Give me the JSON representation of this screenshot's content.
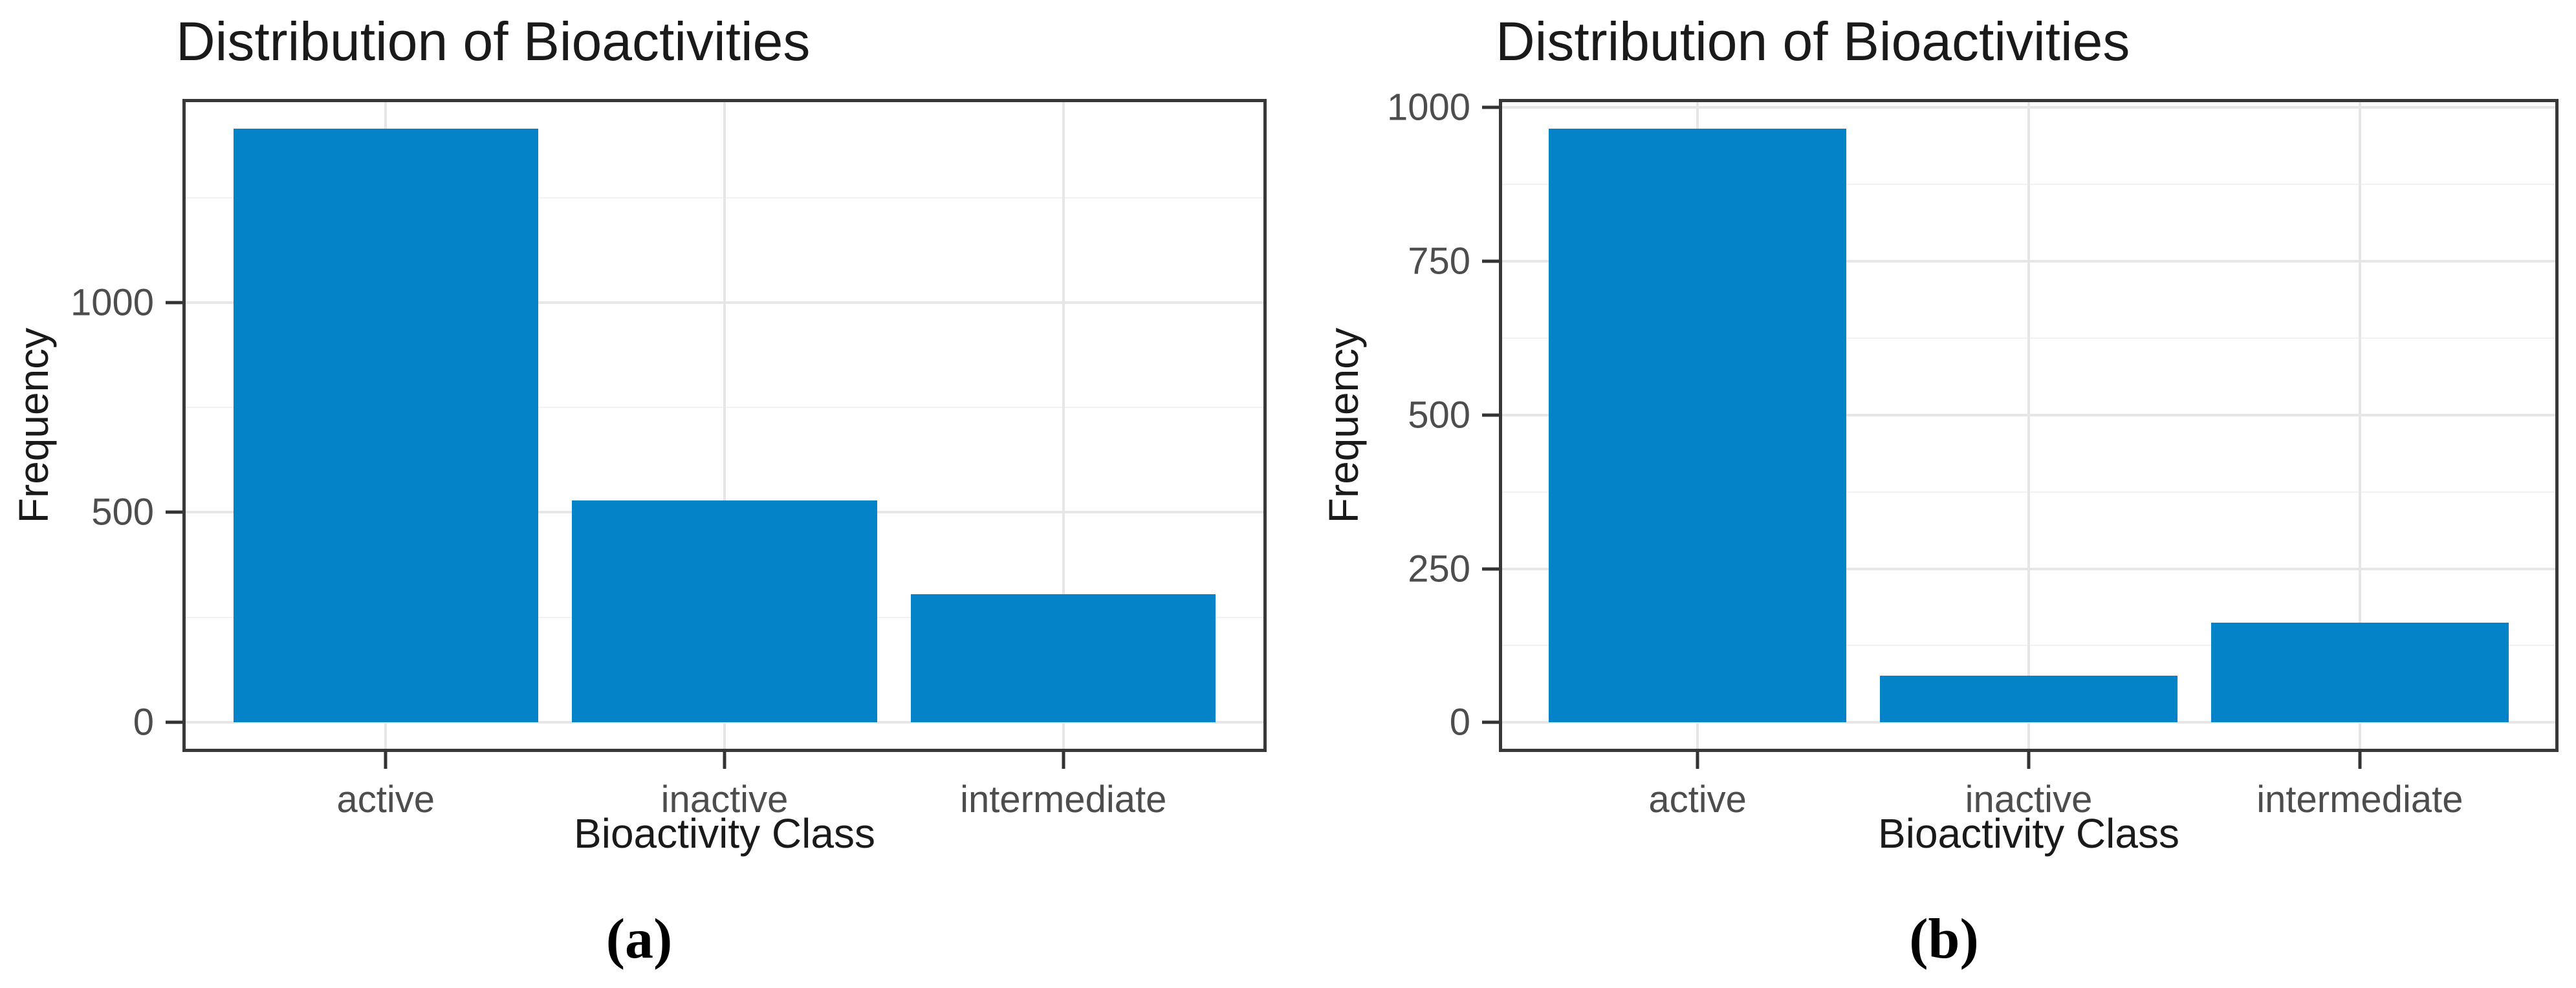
{
  "figure": {
    "background": "#ffffff"
  },
  "style": {
    "bar_color": "#0483c8",
    "grid_major_color": "#e6e6e6",
    "grid_minor_color": "#f2f2f2",
    "panel_border_color": "#383838",
    "tick_mark_color": "#333333",
    "tick_label_color": "#4d4d4d",
    "text_color": "#1a1a1a"
  },
  "chart_data": [
    {
      "type": "bar",
      "title": "Distribution of Bioactivities",
      "xlabel": "Bioactivity Class",
      "ylabel": "Frequency",
      "caption": "(a)",
      "categories": [
        "active",
        "inactive",
        "intermediate"
      ],
      "values": [
        1414,
        529,
        305
      ],
      "yticks": [
        0,
        500,
        1000
      ],
      "yticks_minor": [
        250,
        750,
        1250
      ],
      "ylim": [
        -71,
        1485
      ],
      "grid": true,
      "legend": "none",
      "bar_color": "#0483c8"
    },
    {
      "type": "bar",
      "title": "Distribution of Bioactivities",
      "xlabel": "Bioactivity Class",
      "ylabel": "Frequency",
      "caption": "(b)",
      "categories": [
        "active",
        "inactive",
        "intermediate"
      ],
      "values": [
        966,
        76,
        162
      ],
      "yticks": [
        0,
        250,
        500,
        750,
        1000
      ],
      "yticks_minor": [
        125,
        375,
        625,
        875
      ],
      "ylim": [
        -48,
        1014
      ],
      "grid": true,
      "legend": "none",
      "bar_color": "#0483c8"
    }
  ]
}
